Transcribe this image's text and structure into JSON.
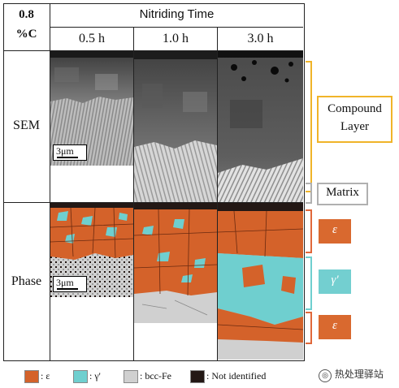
{
  "header": {
    "corner_line1": "0.8",
    "corner_line2": "%C",
    "title": "Nitriding Time",
    "columns": [
      "0.5 h",
      "1.0 h",
      "3.0 h"
    ]
  },
  "rows": {
    "sem": "SEM",
    "phase": "Phase"
  },
  "scale_label": "3μm",
  "side_labels": {
    "compound_line1": "Compound",
    "compound_line2": "Layer",
    "matrix": "Matrix",
    "epsilon": "ε",
    "gamma": "γ'",
    "epsilon2": "ε"
  },
  "legend": [
    {
      "label": ": ε",
      "color": "#d4622a"
    },
    {
      "label": ": γ'",
      "color": "#6fcfcf"
    },
    {
      "label": ": bcc-Fe",
      "color": "#d0d0d0"
    },
    {
      "label": ": Not identified",
      "color": "#231815"
    }
  ],
  "watermark": "热处理驿站",
  "colors": {
    "orange_tag": "#d9692f",
    "teal_tag": "#73cfd0",
    "compound_bracket": "#f0b429",
    "matrix_bracket": "#b0b0b0",
    "gamma_bracket": "#6fcfcf",
    "epsilon_bracket": "#e0683a"
  }
}
